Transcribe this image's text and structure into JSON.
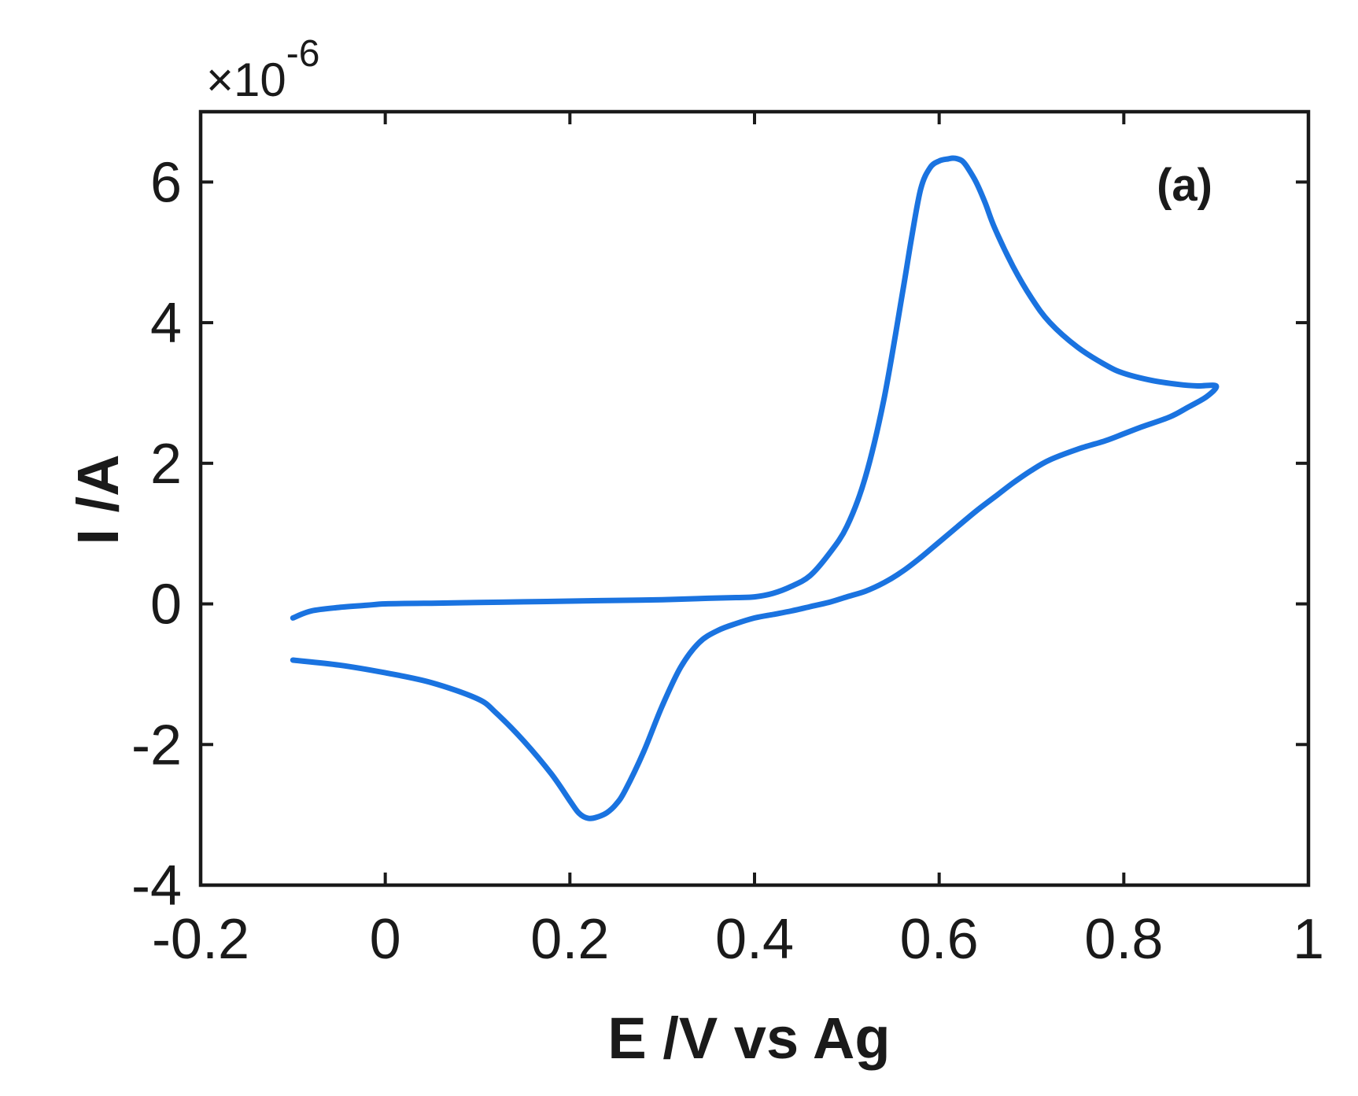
{
  "chart_data": {
    "type": "line",
    "xlabel": "E /V vs Ag",
    "ylabel": "I /A",
    "annotation": "(a)",
    "y_multiplier": {
      "prefix": "×10",
      "exponent": "-6"
    },
    "xlim": [
      -0.2,
      1.0
    ],
    "ylim": [
      -4,
      7
    ],
    "x_ticks": [
      -0.2,
      0,
      0.2,
      0.4,
      0.6,
      0.8,
      1.0
    ],
    "x_tick_labels": [
      "-0.2",
      "0",
      "0.2",
      "0.4",
      "0.6",
      "0.8",
      "1"
    ],
    "y_ticks": [
      -4,
      -2,
      0,
      2,
      4,
      6
    ],
    "y_tick_labels": [
      "-4",
      "-2",
      "0",
      "2",
      "4",
      "6"
    ],
    "grid": false,
    "colors": {
      "line": "#1a73e0",
      "axes": "#1a1a1a"
    },
    "series": [
      {
        "x": [
          -0.1,
          -0.08,
          -0.05,
          -0.02,
          0.0,
          0.05,
          0.1,
          0.15,
          0.2,
          0.25,
          0.3,
          0.35,
          0.38,
          0.4,
          0.42,
          0.44,
          0.46,
          0.48,
          0.5,
          0.52,
          0.54,
          0.56,
          0.57,
          0.58,
          0.59,
          0.6,
          0.61,
          0.615,
          0.62,
          0.625,
          0.63,
          0.64,
          0.65,
          0.66,
          0.68,
          0.7,
          0.72,
          0.75,
          0.78,
          0.8,
          0.83,
          0.86,
          0.88,
          0.9,
          0.89,
          0.87,
          0.85,
          0.82,
          0.8,
          0.78,
          0.75,
          0.72,
          0.7,
          0.68,
          0.66,
          0.64,
          0.62,
          0.6,
          0.58,
          0.56,
          0.54,
          0.52,
          0.5,
          0.48,
          0.46,
          0.44,
          0.42,
          0.4,
          0.38,
          0.36,
          0.34,
          0.32,
          0.3,
          0.28,
          0.26,
          0.25,
          0.24,
          0.23,
          0.22,
          0.21,
          0.2,
          0.18,
          0.15,
          0.12,
          0.1,
          0.05,
          0.0,
          -0.05,
          -0.1
        ],
        "y": [
          -0.2,
          -0.1,
          -0.05,
          -0.02,
          0.0,
          0.01,
          0.02,
          0.03,
          0.04,
          0.05,
          0.06,
          0.08,
          0.09,
          0.1,
          0.15,
          0.25,
          0.4,
          0.7,
          1.1,
          1.8,
          2.9,
          4.4,
          5.2,
          5.9,
          6.2,
          6.3,
          6.33,
          6.34,
          6.33,
          6.3,
          6.22,
          6.0,
          5.7,
          5.35,
          4.8,
          4.35,
          4.0,
          3.65,
          3.4,
          3.28,
          3.18,
          3.12,
          3.1,
          3.1,
          2.95,
          2.8,
          2.66,
          2.52,
          2.42,
          2.32,
          2.2,
          2.05,
          1.9,
          1.72,
          1.52,
          1.32,
          1.1,
          0.88,
          0.66,
          0.46,
          0.3,
          0.18,
          0.1,
          0.02,
          -0.04,
          -0.1,
          -0.15,
          -0.2,
          -0.28,
          -0.38,
          -0.55,
          -0.9,
          -1.45,
          -2.1,
          -2.65,
          -2.85,
          -2.97,
          -3.03,
          -3.05,
          -2.98,
          -2.8,
          -2.42,
          -1.95,
          -1.55,
          -1.35,
          -1.12,
          -0.98,
          -0.87,
          -0.8
        ]
      }
    ]
  }
}
